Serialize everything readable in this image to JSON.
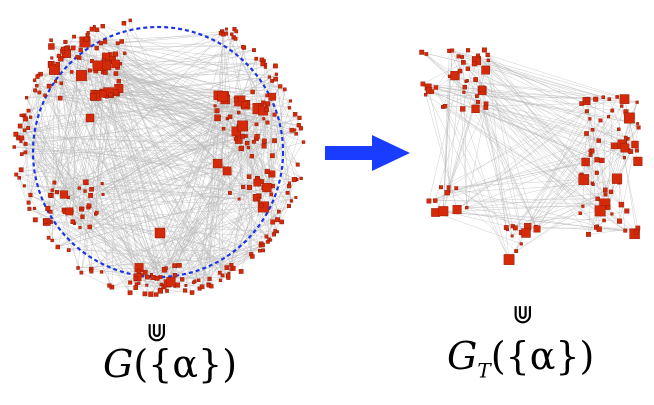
{
  "left_graph": {
    "caption_symbol": "⋓",
    "caption_main": "G",
    "caption_sub": "",
    "caption_arg": "({α})"
  },
  "right_graph": {
    "caption_symbol": "⋓",
    "caption_main": "G",
    "caption_sub": "T",
    "caption_arg": "({α})"
  },
  "arrow": {
    "color": "#1a3cff",
    "direction": "right"
  },
  "colors": {
    "node": "#d42a0a",
    "node_stroke": "#8a1600",
    "edge": "#b9b9b9",
    "circle": "#1a35e6"
  }
}
